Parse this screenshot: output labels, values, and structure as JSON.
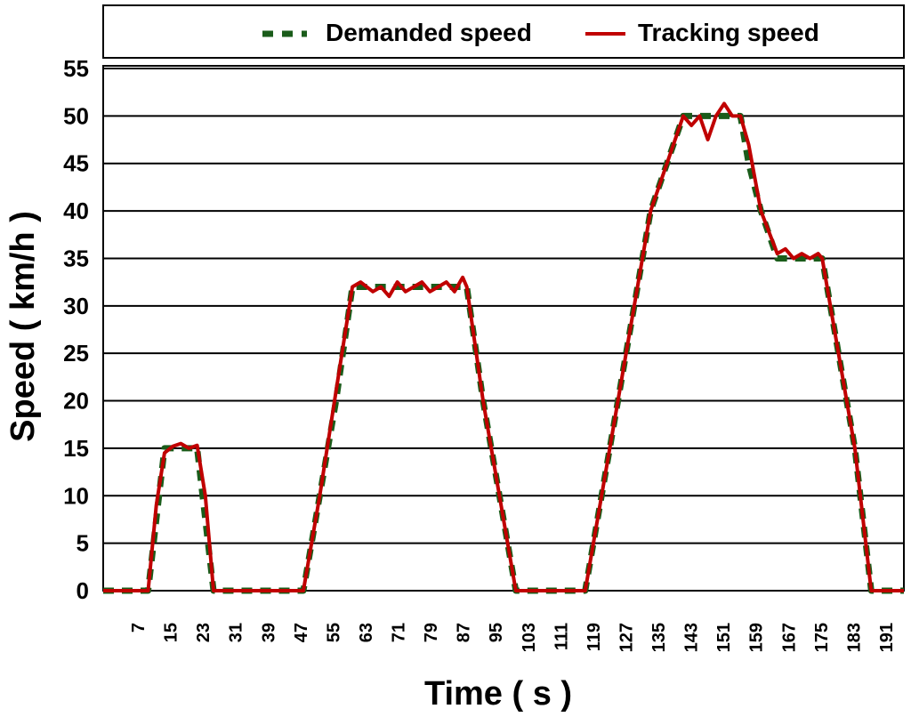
{
  "chart_data": {
    "type": "line",
    "xlabel": "Time ( s )",
    "ylabel": "Speed ( km/h )",
    "ylim": [
      0,
      55
    ],
    "y_ticks": [
      0,
      5,
      10,
      15,
      20,
      25,
      30,
      35,
      40,
      45,
      50,
      55
    ],
    "x_tick_labels": [
      "7",
      "15",
      "23",
      "31",
      "39",
      "47",
      "55",
      "63",
      "71",
      "79",
      "87",
      "95",
      "103",
      "111",
      "119",
      "127",
      "135",
      "143",
      "151",
      "159",
      "167",
      "175",
      "183",
      "191"
    ],
    "xlim": [
      0,
      196
    ],
    "grid": "horizontal",
    "legend_position": "top",
    "series": [
      {
        "name": "Demanded speed",
        "color": "#1a5c1a",
        "style": "dashed",
        "x": [
          0,
          11,
          15,
          19,
          23,
          27,
          49,
          53,
          57,
          61,
          89,
          93,
          97,
          101,
          118,
          122,
          126,
          130,
          134,
          138,
          142,
          146,
          150,
          156,
          158,
          161,
          165,
          172,
          176,
          180,
          184,
          188,
          196
        ],
        "y": [
          0,
          0,
          15,
          15,
          15,
          0,
          0,
          10,
          20,
          32,
          32,
          20,
          10,
          0,
          0,
          10,
          20,
          30,
          40,
          45,
          50,
          50,
          50,
          50,
          45,
          40,
          35,
          35,
          35,
          25,
          15,
          0,
          0
        ]
      },
      {
        "name": "Tracking speed",
        "color": "#c00000",
        "style": "solid",
        "x": [
          0,
          11,
          13,
          15,
          17,
          19,
          21,
          23,
          25,
          27,
          49,
          53,
          57,
          61,
          63,
          66,
          68,
          70,
          72,
          74,
          76,
          78,
          80,
          82,
          84,
          86,
          88,
          89,
          93,
          97,
          101,
          118,
          122,
          126,
          130,
          134,
          138,
          142,
          144,
          146,
          148,
          150,
          152,
          154,
          156,
          158,
          161,
          165,
          167,
          169,
          171,
          173,
          175,
          176,
          180,
          184,
          188,
          196
        ],
        "y": [
          0,
          0,
          9,
          14.5,
          15.2,
          15.5,
          15,
          15.3,
          10,
          0,
          0,
          10,
          21,
          32,
          32.5,
          31.5,
          32,
          31,
          32.5,
          31.5,
          32,
          32.5,
          31.5,
          32,
          32.5,
          31.5,
          33,
          32,
          20,
          10,
          0,
          0,
          10,
          20,
          30,
          40,
          45,
          50,
          49,
          50,
          47.5,
          50,
          51.3,
          50,
          50,
          47,
          40,
          35.5,
          36,
          35,
          35.5,
          35,
          35.5,
          35,
          25,
          15,
          0,
          0
        ]
      }
    ]
  }
}
